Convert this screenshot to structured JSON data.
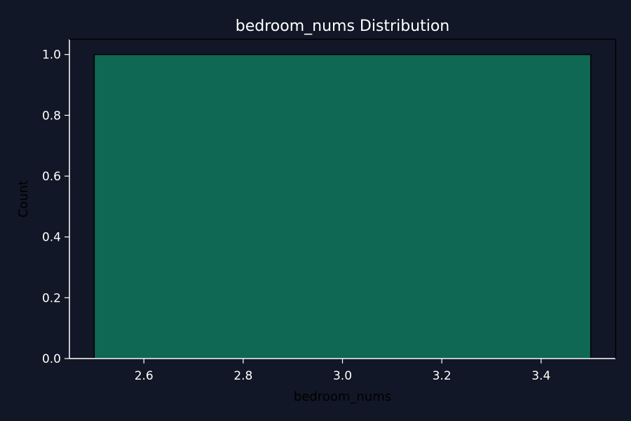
{
  "chart_data": {
    "type": "bar",
    "title": "bedroom_nums Distribution",
    "xlabel": "bedroom_nums",
    "ylabel": "Count",
    "bins": [
      {
        "x_start": 2.5,
        "x_end": 3.5,
        "value": 1.0
      }
    ],
    "xlim": [
      2.45,
      3.55
    ],
    "ylim": [
      0.0,
      1.05
    ],
    "x_ticks": [
      2.6,
      2.8,
      3.0,
      3.2,
      3.4
    ],
    "x_tick_labels": [
      "2.6",
      "2.8",
      "3.0",
      "3.2",
      "3.4"
    ],
    "y_ticks": [
      0.0,
      0.2,
      0.4,
      0.6,
      0.8,
      1.0
    ],
    "y_tick_labels": [
      "0.0",
      "0.2",
      "0.4",
      "0.6",
      "0.8",
      "1.0"
    ],
    "grid": false,
    "colors": {
      "background": "#111726",
      "plot_background": "#111726",
      "bar_fill": "#0f6854",
      "bar_edge": "#000000",
      "axis": "#ffffff",
      "title_text": "#ffffff",
      "tick_text": "#ffffff",
      "axis_title_text": "#000000"
    }
  }
}
